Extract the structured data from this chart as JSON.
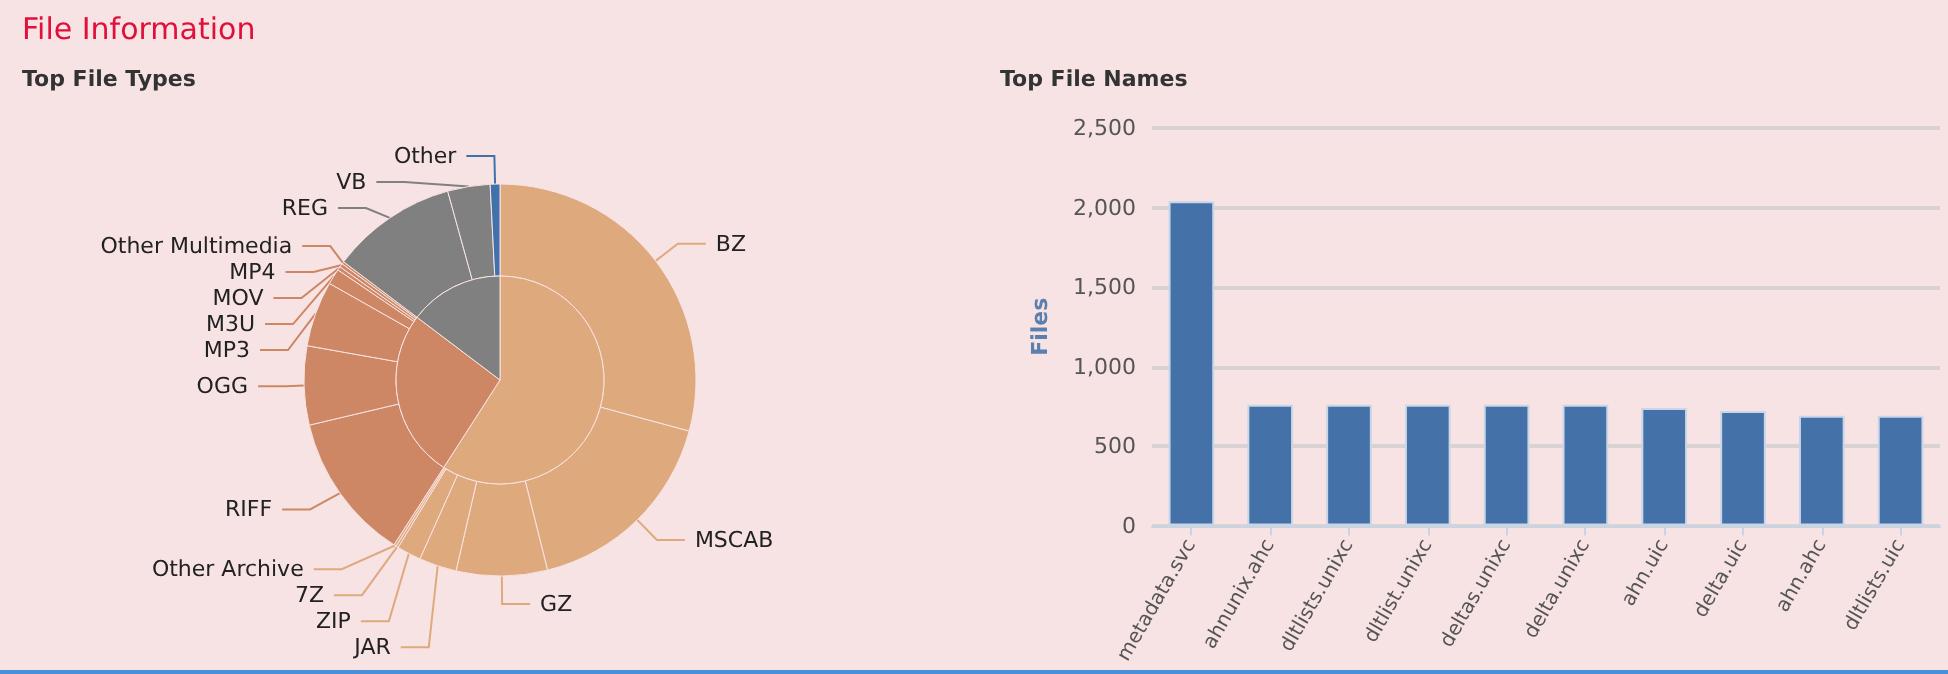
{
  "chart_data": [
    {
      "type": "donut",
      "title": "File Information",
      "subtitle": "Top File Types",
      "categories": [
        "BZ",
        "MSCAB",
        "GZ",
        "JAR",
        "ZIP",
        "7Z",
        "Other Archive",
        "RIFF",
        "OGG",
        "MP3",
        "M3U",
        "MOV",
        "MP4",
        "Other Multimedia",
        "REG",
        "VB",
        "Other"
      ],
      "values": [
        29.2,
        16.9,
        7.5,
        3.1,
        2.0,
        0.2,
        0.2,
        12.2,
        6.5,
        5.4,
        1.3,
        0.3,
        0.3,
        0.2,
        10.4,
        3.5,
        0.8
      ],
      "colors": [
        "#dfa97e",
        "#dfa97e",
        "#dfa97e",
        "#dfa97e",
        "#dfa97e",
        "#dfa97e",
        "#dfa97e",
        "#cd8765",
        "#cd8765",
        "#cd8765",
        "#cd8765",
        "#cd8765",
        "#cd8765",
        "#cd8765",
        "#808080",
        "#808080",
        "#3f72ab"
      ]
    },
    {
      "type": "pie",
      "categories": [
        null,
        null,
        null
      ],
      "values": [
        59.1,
        26.2,
        14.7
      ],
      "colors": [
        "#dfa97e",
        "#cd8765",
        "#808080"
      ]
    },
    {
      "type": "bar",
      "title": "Top File Names",
      "ylabel": "Files",
      "categories": [
        "metadata.svc",
        "ahnunix.ahc",
        "dltlists.unixc",
        "dltlist.unixc",
        "deltas.unixc",
        "delta.unixc",
        "ahn.uic",
        "delta.uic",
        "ahn.ahc",
        "dltlists.uic"
      ],
      "values": [
        2040,
        760,
        760,
        760,
        760,
        760,
        740,
        720,
        690,
        690
      ],
      "color": "#4472a8",
      "ylim": [
        0,
        2500
      ],
      "yticks": [
        0,
        500,
        {
          "value": 1000,
          "label": "1,000"
        },
        {
          "value": 1500,
          "label": "1,500"
        },
        {
          "value": 2000,
          "label": "2,000"
        },
        {
          "value": 2500,
          "label": "2,500"
        }
      ],
      "grid": "y"
    }
  ]
}
